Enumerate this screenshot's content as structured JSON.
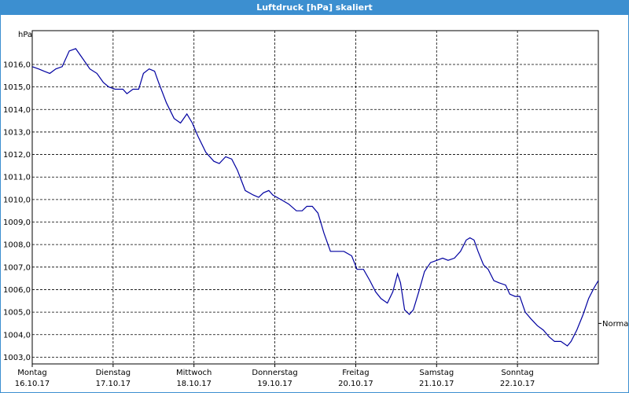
{
  "chart_data": {
    "type": "line",
    "title": "Luftdruck [hPa] skaliert",
    "y_unit": "hPa",
    "x": [
      0,
      1.9,
      3.5,
      5.2,
      7.0,
      8.9,
      11.0,
      12.9,
      14.8,
      17.1,
      19.2,
      21.1,
      22.7,
      24.6,
      26.9,
      28.1,
      29.9,
      31.6,
      33.0,
      34.7,
      36.3,
      37.5,
      39.8,
      42.1,
      44.0,
      45.9,
      47.5,
      49.2,
      51.5,
      53.9,
      55.5,
      57.4,
      59.2,
      60.9,
      63.2,
      65.6,
      67.2,
      68.6,
      70.2,
      71.4,
      73.8,
      76.1,
      78.4,
      80.1,
      81.5,
      83.1,
      84.8,
      86.6,
      88.5,
      90.1,
      92.5,
      94.8,
      96.4,
      98.3,
      100.2,
      101.9,
      103.5,
      105.4,
      107.0,
      108.4,
      109.3,
      110.5,
      111.9,
      113.1,
      114.7,
      116.4,
      118.2,
      120.1,
      121.8,
      123.4,
      125.3,
      127.1,
      128.8,
      129.9,
      131.1,
      132.3,
      133.9,
      135.3,
      137.0,
      138.6,
      140.5,
      141.7,
      143.3,
      144.7,
      146.3,
      148.0,
      149.9,
      151.7,
      153.4,
      155.0,
      156.9,
      158.8,
      159.9,
      161.6,
      163.5,
      165.1,
      166.8,
      168.0
    ],
    "series": [
      {
        "name": "Luftdruck",
        "color": "#0000a0",
        "values": [
          1015.9,
          1015.8,
          1015.7,
          1015.6,
          1015.8,
          1015.9,
          1016.6,
          1016.7,
          1016.3,
          1015.8,
          1015.6,
          1015.2,
          1015.0,
          1014.9,
          1014.9,
          1014.7,
          1014.9,
          1014.9,
          1015.6,
          1015.8,
          1015.7,
          1015.2,
          1014.3,
          1013.6,
          1013.4,
          1013.8,
          1013.4,
          1012.8,
          1012.1,
          1011.7,
          1011.6,
          1011.9,
          1011.8,
          1011.3,
          1010.4,
          1010.2,
          1010.1,
          1010.3,
          1010.4,
          1010.2,
          1010.0,
          1009.8,
          1009.5,
          1009.5,
          1009.7,
          1009.7,
          1009.4,
          1008.5,
          1007.7,
          1007.7,
          1007.7,
          1007.5,
          1006.9,
          1006.9,
          1006.4,
          1005.9,
          1005.6,
          1005.4,
          1005.9,
          1006.7,
          1006.3,
          1005.1,
          1004.9,
          1005.1,
          1005.9,
          1006.8,
          1007.2,
          1007.3,
          1007.4,
          1007.3,
          1007.4,
          1007.7,
          1008.2,
          1008.3,
          1008.2,
          1007.7,
          1007.1,
          1006.9,
          1006.4,
          1006.3,
          1006.2,
          1005.8,
          1005.7,
          1005.7,
          1005.0,
          1004.7,
          1004.4,
          1004.2,
          1003.9,
          1003.7,
          1003.7,
          1003.5,
          1003.7,
          1004.2,
          1004.9,
          1005.6,
          1006.1,
          1006.4
        ]
      }
    ],
    "xlim": [
      0,
      168
    ],
    "xticks": [
      {
        "value": 0,
        "weekday": "Montag",
        "label": "16.10.17"
      },
      {
        "value": 24,
        "weekday": "Dienstag",
        "label": "17.10.17"
      },
      {
        "value": 48,
        "weekday": "Mittwoch",
        "label": "18.10.17"
      },
      {
        "value": 72,
        "weekday": "Donnerstag",
        "label": "19.10.17"
      },
      {
        "value": 96,
        "weekday": "Freitag",
        "label": "20.10.17"
      },
      {
        "value": 120,
        "weekday": "Samstag",
        "label": "21.10.17"
      },
      {
        "value": 144,
        "weekday": "Sonntag",
        "label": "22.10.17"
      }
    ],
    "ylim": [
      1002.7,
      1017.5
    ],
    "yticks": [
      {
        "value": 1003,
        "label": "1003,0"
      },
      {
        "value": 1004,
        "label": "1004,0"
      },
      {
        "value": 1005,
        "label": "1005,0"
      },
      {
        "value": 1006,
        "label": "1006,0"
      },
      {
        "value": 1007,
        "label": "1007,0"
      },
      {
        "value": 1008,
        "label": "1008,0"
      },
      {
        "value": 1009,
        "label": "1009,0"
      },
      {
        "value": 1010,
        "label": "1010,0"
      },
      {
        "value": 1011,
        "label": "1011,0"
      },
      {
        "value": 1012,
        "label": "1012,0"
      },
      {
        "value": 1013,
        "label": "1013,0"
      },
      {
        "value": 1014,
        "label": "1014,0"
      },
      {
        "value": 1015,
        "label": "1015,0"
      },
      {
        "value": 1016,
        "label": "1016,0"
      }
    ],
    "normal": {
      "label": "Normal",
      "value": 1004.5
    },
    "grid": true
  }
}
